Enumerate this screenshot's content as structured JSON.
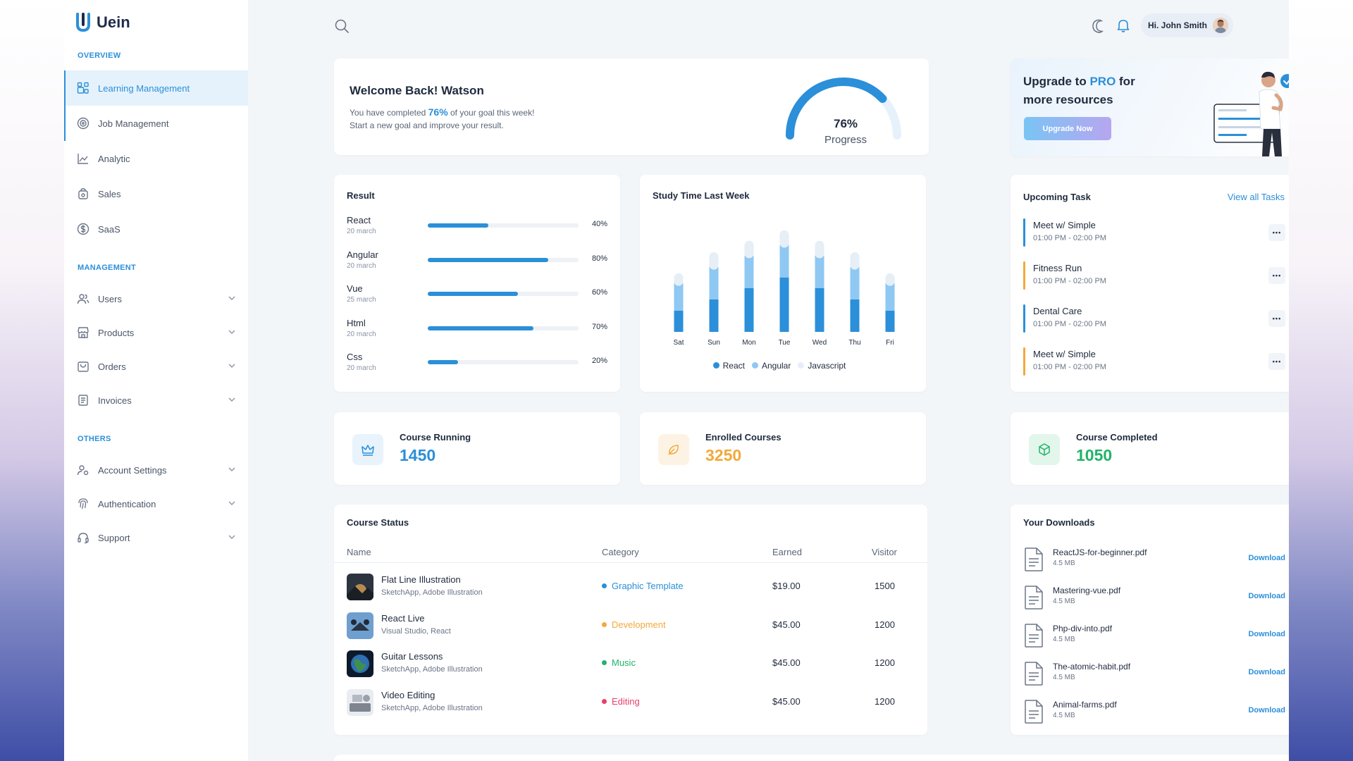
{
  "app": {
    "name": "Uein"
  },
  "sidebar": {
    "sections": {
      "overview": "OVERVIEW",
      "management": "MANAGEMENT",
      "others": "OTHERS"
    },
    "overview_items": [
      {
        "label": "Learning Management",
        "icon": "grid-icon"
      },
      {
        "label": "Job Management",
        "icon": "target-icon"
      },
      {
        "label": "Analytic",
        "icon": "chart-icon"
      },
      {
        "label": "Sales",
        "icon": "bag-icon"
      },
      {
        "label": "SaaS",
        "icon": "dollar-icon"
      }
    ],
    "management_items": [
      {
        "label": "Users",
        "icon": "users-icon"
      },
      {
        "label": "Products",
        "icon": "store-icon"
      },
      {
        "label": "Orders",
        "icon": "cart-icon"
      },
      {
        "label": "Invoices",
        "icon": "invoice-icon"
      }
    ],
    "other_items": [
      {
        "label": "Account Settings",
        "icon": "user-settings-icon"
      },
      {
        "label": "Authentication",
        "icon": "fingerprint-icon"
      },
      {
        "label": "Support",
        "icon": "headset-icon"
      }
    ]
  },
  "header": {
    "greeting": "Hi. John Smith"
  },
  "welcome": {
    "title": "Welcome Back! Watson",
    "line1_prefix": "You have completed ",
    "line1_pct": "76%",
    "line1_suffix": " of your goal this week!",
    "line2": "Start a new goal and improve your result.",
    "gauge_value": "76%",
    "gauge_label": "Progress",
    "gauge_fraction": 0.76
  },
  "upgrade": {
    "title_a": "Upgrade to ",
    "title_pro": "PRO",
    "title_b": " for",
    "title_c": "more resources",
    "button": "Upgrade Now"
  },
  "result": {
    "title": "Result",
    "rows": [
      {
        "name": "React",
        "date": "20 march",
        "pct_label": "40%",
        "pct": 0.4
      },
      {
        "name": "Angular",
        "date": "20 march",
        "pct_label": "80%",
        "pct": 0.8
      },
      {
        "name": "Vue",
        "date": "25 march",
        "pct_label": "60%",
        "pct": 0.6
      },
      {
        "name": "Html",
        "date": "20 march",
        "pct_label": "70%",
        "pct": 0.7
      },
      {
        "name": "Css",
        "date": "20 march",
        "pct_label": "20%",
        "pct": 0.2
      }
    ]
  },
  "study": {
    "title": "Study Time Last Week",
    "legend": [
      "React",
      "Angular",
      "Javascript"
    ],
    "colors": {
      "React": "#2b8fd9",
      "Angular": "#8ec8f3",
      "Javascript": "#e6eef6"
    }
  },
  "chart_data": {
    "type": "bar",
    "stacked": true,
    "categories": [
      "Sat",
      "Sun",
      "Mon",
      "Tue",
      "Wed",
      "Thu",
      "Fri"
    ],
    "series": [
      {
        "name": "React",
        "values": [
          26,
          40,
          54,
          67,
          54,
          40,
          26
        ]
      },
      {
        "name": "Angular",
        "values": [
          34,
          40,
          40,
          40,
          40,
          40,
          34
        ]
      },
      {
        "name": "Javascript",
        "values": [
          12,
          18,
          18,
          18,
          18,
          18,
          12
        ]
      }
    ],
    "legend_position": "bottom",
    "grid": false,
    "ylim": [
      0,
      130
    ]
  },
  "tasks": {
    "title": "Upcoming Task",
    "view_all": "View all Tasks",
    "items": [
      {
        "name": "Meet w/ Simple",
        "time": "01:00 PM - 02:00 PM",
        "color": "#2b8fd9"
      },
      {
        "name": "Fitness Run",
        "time": "01:00 PM - 02:00 PM",
        "color": "#f2a93b"
      },
      {
        "name": "Dental Care",
        "time": "01:00 PM - 02:00 PM",
        "color": "#2b8fd9"
      },
      {
        "name": "Meet w/ Simple",
        "time": "01:00 PM - 02:00 PM",
        "color": "#f2a93b"
      }
    ]
  },
  "stats": [
    {
      "label": "Course Running",
      "value": "1450",
      "color": "#2b8fd9",
      "bg": "#e8f3fc",
      "icon": "crown-icon"
    },
    {
      "label": "Enrolled Courses",
      "value": "3250",
      "color": "#f2a93b",
      "bg": "#fdf3e4",
      "icon": "leaf-icon"
    },
    {
      "label": "Course Completed",
      "value": "1050",
      "color": "#22b36a",
      "bg": "#e3f6ec",
      "icon": "box-icon"
    }
  ],
  "courses": {
    "title": "Course Status",
    "columns": [
      "Name",
      "Category",
      "Earned",
      "Visitor"
    ],
    "rows": [
      {
        "name": "Flat Line Illustration",
        "sub": "SketchApp, Adobe Illustration",
        "category": "Graphic Template",
        "cat_color": "#2b8fd9",
        "earned": "$19.00",
        "visitor": "1500"
      },
      {
        "name": "React Live",
        "sub": "Visual Studio, React",
        "category": "Development",
        "cat_color": "#f2a93b",
        "earned": "$45.00",
        "visitor": "1200"
      },
      {
        "name": "Guitar Lessons",
        "sub": "SketchApp, Adobe Illustration",
        "category": "Music",
        "cat_color": "#22b36a",
        "earned": "$45.00",
        "visitor": "1200"
      },
      {
        "name": "Video Editing",
        "sub": "SketchApp, Adobe Illustration",
        "category": "Editing",
        "cat_color": "#e83e6c",
        "earned": "$45.00",
        "visitor": "1200"
      }
    ]
  },
  "downloads": {
    "title": "Your Downloads",
    "action": "Download",
    "items": [
      {
        "name": "ReactJS-for-beginner.pdf",
        "size": "4.5 MB"
      },
      {
        "name": "Mastering-vue.pdf",
        "size": "4.5 MB"
      },
      {
        "name": "Php-div-into.pdf",
        "size": "4.5 MB"
      },
      {
        "name": "The-atomic-habit.pdf",
        "size": "4.5 MB"
      },
      {
        "name": "Animal-farms.pdf",
        "size": "4.5 MB"
      }
    ]
  }
}
